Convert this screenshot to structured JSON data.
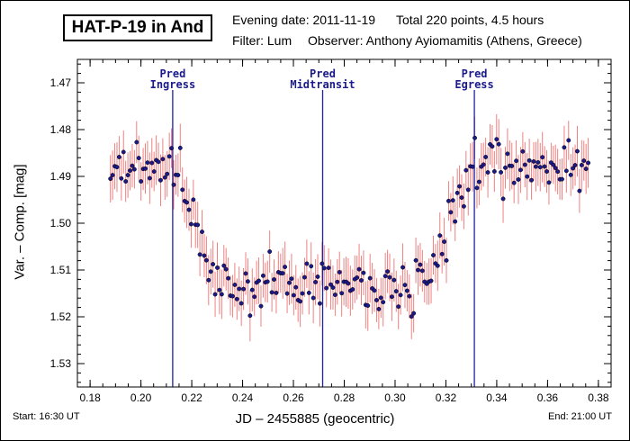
{
  "header": {
    "object": "HAT-P-19 in And",
    "evening_date": "Evening date: 2011-11-19",
    "points_summary": "Total 220 points, 4.5 hours",
    "filter": "Filter: Lum",
    "observer": "Observer: Anthony Ayiomamitis (Athens, Greece)"
  },
  "footer": {
    "start": "Start: 16:30 UT",
    "end": "End: 21:00 UT"
  },
  "colors": {
    "point_fill": "#1a1a8c",
    "error_bar": "#f08080",
    "marker_line": "#2020a0"
  },
  "chart_data": {
    "type": "scatter",
    "title": "HAT-P-19 in And",
    "xlabel": "JD – 2455885  (geocentric)",
    "ylabel": "Var. – Comp. [mag]",
    "xlim": [
      0.175,
      0.385
    ],
    "ylim": [
      1.535,
      1.465
    ],
    "y_inverted": true,
    "grid": false,
    "x_ticks": [
      0.18,
      0.2,
      0.22,
      0.24,
      0.26,
      0.28,
      0.3,
      0.32,
      0.34,
      0.36,
      0.38
    ],
    "x_tick_labels": [
      "0.18",
      "0.20",
      "0.22",
      "0.24",
      "0.26",
      "0.28",
      "0.30",
      "0.32",
      "0.34",
      "0.36",
      "0.38"
    ],
    "y_ticks": [
      1.47,
      1.48,
      1.49,
      1.5,
      1.51,
      1.52,
      1.53
    ],
    "y_tick_labels": [
      "1.47",
      "1.48",
      "1.49",
      "1.50",
      "1.51",
      "1.52",
      "1.53"
    ],
    "markers": [
      {
        "label": [
          "Pred",
          "Ingress"
        ],
        "x": 0.2125
      },
      {
        "label": [
          "Pred",
          "Midtransit"
        ],
        "x": 0.2715
      },
      {
        "label": [
          "Pred",
          "Egress"
        ],
        "x": 0.3312
      }
    ],
    "model": {
      "n_points": 220,
      "x_start": 0.188,
      "x_end": 0.376,
      "baseline_mag": 1.4875,
      "depth_mag": 0.0255,
      "t1": 0.2125,
      "t2": 0.2305,
      "t3": 0.3132,
      "t4": 0.3312,
      "scatter_mag": 0.003,
      "error_bar_mag": 0.0048
    }
  }
}
